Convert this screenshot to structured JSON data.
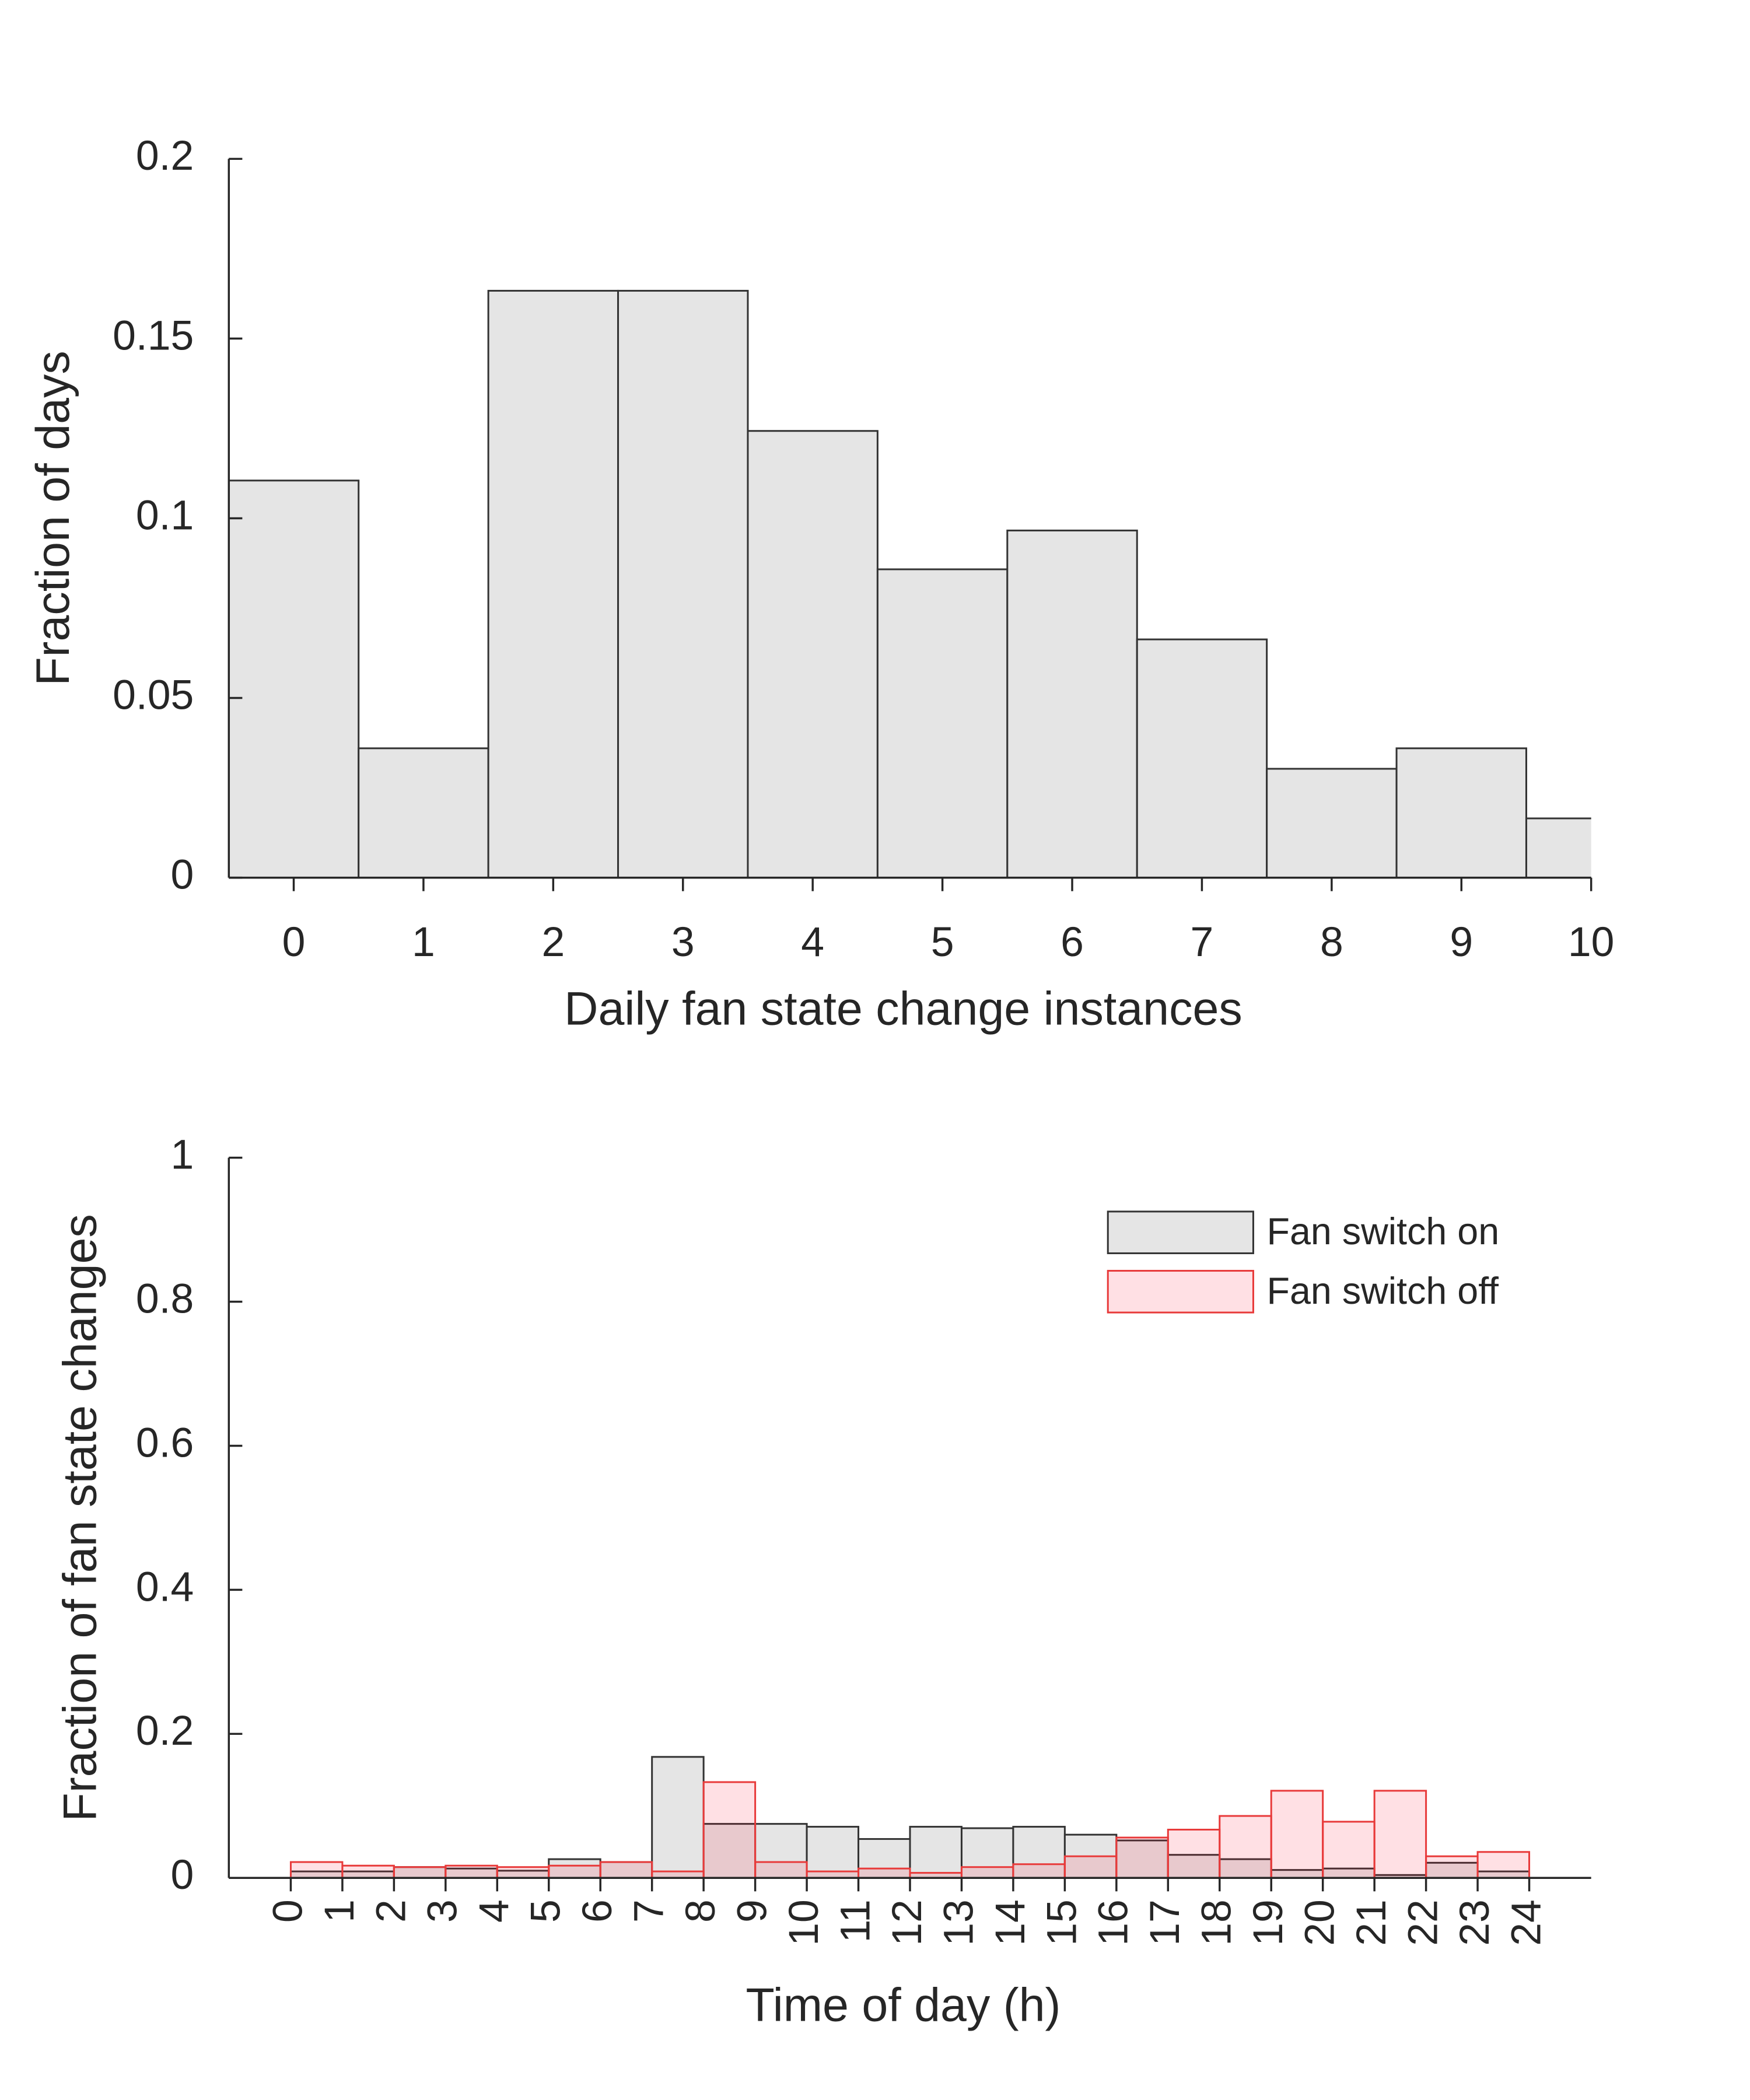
{
  "chart_data": [
    {
      "type": "histogram",
      "xlabel": "Daily fan state change instances",
      "ylabel": "Fraction of days",
      "bins": [
        -0.5,
        0.5,
        1.5,
        2.5,
        3.5,
        4.5,
        5.5,
        6.5,
        7.5,
        8.5,
        9.5,
        10.5
      ],
      "series": [
        {
          "name": null,
          "color": "#e5e5e5",
          "edgecolor": "#333333",
          "values": [
            0.1105,
            0.036,
            0.1633,
            0.1633,
            0.1243,
            0.0858,
            0.0966,
            0.0663,
            0.0303,
            0.036,
            0.0165
          ]
        }
      ],
      "xlim": [
        -0.5,
        10
      ],
      "xticks": [
        0,
        1,
        2,
        3,
        4,
        5,
        6,
        7,
        8,
        9,
        10
      ],
      "ylim": [
        0,
        0.2
      ],
      "yticks": [
        0,
        0.05,
        0.1,
        0.15,
        0.2
      ],
      "grid": false
    },
    {
      "type": "histogram",
      "xlabel": "Time of day (h)",
      "ylabel": "Fraction of fan state changes",
      "bins": [
        0,
        1,
        2,
        3,
        4,
        5,
        6,
        7,
        8,
        9,
        10,
        11,
        12,
        13,
        14,
        15,
        16,
        17,
        18,
        19,
        20,
        21,
        22,
        23,
        24
      ],
      "series": [
        {
          "name": "Fan switch on",
          "color": "#e5e5e5",
          "edgecolor": "#333333",
          "values": [
            0.009,
            0.009,
            0.015,
            0.013,
            0.01,
            0.026,
            0.022,
            0.168,
            0.075,
            0.075,
            0.071,
            0.054,
            0.071,
            0.069,
            0.071,
            0.06,
            0.052,
            0.032,
            0.026,
            0.011,
            0.013,
            0.004,
            0.021,
            0.009
          ]
        },
        {
          "name": "Fan switch off",
          "color": "#ff0022",
          "edgecolor": "#e83a3a",
          "values": [
            0.022,
            0.017,
            0.015,
            0.017,
            0.015,
            0.017,
            0.022,
            0.009,
            0.133,
            0.022,
            0.009,
            0.013,
            0.007,
            0.015,
            0.019,
            0.03,
            0.056,
            0.067,
            0.086,
            0.121,
            0.078,
            0.121,
            0.03,
            0.036
          ]
        }
      ],
      "xlim": [
        -1.2,
        25.2
      ],
      "xticks": [
        0,
        1,
        2,
        3,
        4,
        5,
        6,
        7,
        8,
        9,
        10,
        11,
        12,
        13,
        14,
        15,
        16,
        17,
        18,
        19,
        20,
        21,
        22,
        23,
        24
      ],
      "xtick_rotation": 90,
      "ylim": [
        0,
        1
      ],
      "yticks": [
        0,
        0.2,
        0.4,
        0.6,
        0.8,
        1
      ],
      "grid": false,
      "legend": "upper right"
    }
  ]
}
